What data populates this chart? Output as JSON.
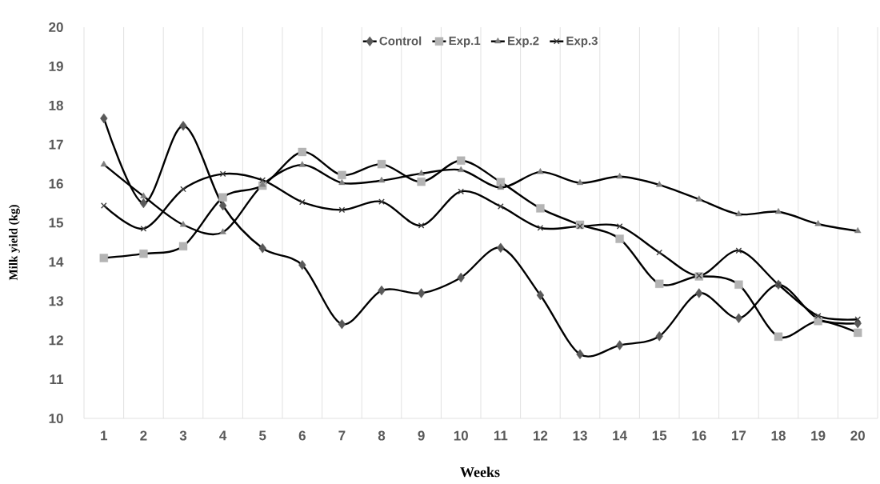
{
  "chart_data": {
    "type": "line",
    "xlabel": "Weeks",
    "ylabel": "Milk yield (kg)",
    "categories": [
      "1",
      "2",
      "3",
      "4",
      "5",
      "6",
      "7",
      "8",
      "9",
      "10",
      "11",
      "12",
      "13",
      "14",
      "15",
      "16",
      "17",
      "18",
      "19",
      "20"
    ],
    "ylim": [
      10,
      20
    ],
    "yticks": [
      10,
      11,
      12,
      13,
      14,
      15,
      16,
      17,
      18,
      19,
      20
    ],
    "grid": "x",
    "legend": "top",
    "series": [
      {
        "name": "Control",
        "color": "#595959",
        "marker": "diamond",
        "values": [
          17.67,
          15.5,
          17.48,
          15.44,
          14.35,
          13.92,
          12.41,
          13.27,
          13.2,
          13.6,
          14.36,
          13.15,
          11.64,
          11.87,
          12.1,
          13.2,
          12.56,
          13.42,
          12.54,
          12.43
        ]
      },
      {
        "name": "Exp.1",
        "color": "#b4b4b4",
        "marker": "square",
        "values": [
          14.1,
          14.21,
          14.4,
          15.65,
          15.95,
          16.81,
          16.22,
          16.5,
          16.05,
          16.59,
          16.04,
          15.37,
          14.95,
          14.59,
          13.44,
          13.63,
          13.42,
          12.09,
          12.49,
          12.19
        ]
      },
      {
        "name": "Exp.2",
        "color": "#7f7f7f",
        "marker": "triangle",
        "values": [
          16.49,
          15.68,
          14.95,
          14.76,
          15.97,
          16.48,
          16.02,
          16.08,
          16.26,
          16.35,
          15.9,
          16.3,
          16.02,
          16.18,
          15.97,
          15.6,
          15.22,
          15.28,
          14.97,
          14.79
        ]
      },
      {
        "name": "Exp.3",
        "color": "#404040",
        "marker": "cross",
        "values": [
          15.44,
          14.85,
          15.86,
          16.25,
          16.09,
          15.53,
          15.33,
          15.54,
          14.93,
          15.8,
          15.42,
          14.87,
          14.91,
          14.91,
          14.24,
          13.65,
          14.29,
          13.42,
          12.62,
          12.53
        ]
      }
    ]
  }
}
